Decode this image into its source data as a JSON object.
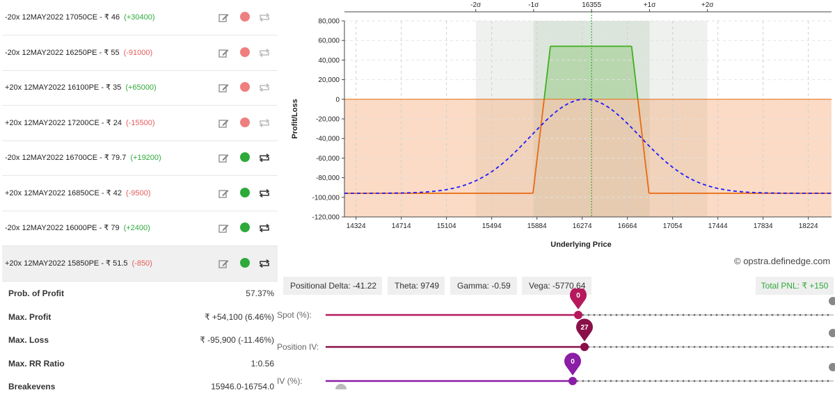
{
  "positions": [
    {
      "text": "-20x  12MAY2022  17050CE - ₹ 46",
      "pnl": "(+30400)",
      "pnl_color": "green",
      "status": "inactive"
    },
    {
      "text": "-20x  12MAY2022  16250PE - ₹ 55",
      "pnl": "(-91000)",
      "pnl_color": "red",
      "status": "inactive"
    },
    {
      "text": "+20x  12MAY2022  16100PE - ₹ 35",
      "pnl": "(+65000)",
      "pnl_color": "green",
      "status": "inactive"
    },
    {
      "text": "+20x  12MAY2022  17200CE - ₹ 24",
      "pnl": "(-15500)",
      "pnl_color": "red",
      "status": "inactive"
    },
    {
      "text": "-20x  12MAY2022  16700CE - ₹ 79.7",
      "pnl": "(+19200)",
      "pnl_color": "green",
      "status": "active"
    },
    {
      "text": "+20x  12MAY2022  16850CE - ₹ 42",
      "pnl": "(-9500)",
      "pnl_color": "red",
      "status": "active"
    },
    {
      "text": "-20x  12MAY2022  16000PE - ₹ 79",
      "pnl": "(+2400)",
      "pnl_color": "green",
      "status": "active"
    },
    {
      "text": "+20x  12MAY2022  15850PE - ₹ 51.5",
      "pnl": "(-850)",
      "pnl_color": "red",
      "status": "active"
    }
  ],
  "stats": [
    {
      "label": "Prob. of Profit",
      "value": "57.37%"
    },
    {
      "label": "Max. Profit",
      "value": "₹ +54,100 (6.46%)"
    },
    {
      "label": "Max. Loss",
      "value": "₹ -95,900 (-11.46%)"
    },
    {
      "label": "Max. RR Ratio",
      "value": "1:0.56"
    },
    {
      "label": "Breakevens",
      "value": "15946.0-16754.0"
    }
  ],
  "greeks": {
    "delta": "Positional Delta: -41.22",
    "theta": "Theta: 9749",
    "gamma": "Gamma: -0.59",
    "vega": "Vega: -5770.64",
    "total_pnl": "Total PNL: ₹ +150"
  },
  "credit": "© opstra.definedge.com",
  "sliders": [
    {
      "label": "Spot (%):",
      "value": "0",
      "color": "#b5195c"
    },
    {
      "label": "Position IV:",
      "value": "27",
      "color": "#8a1049"
    },
    {
      "label": "IV (%):",
      "value": "0",
      "color": "#8a1ea5"
    }
  ],
  "colors": {
    "green": "#2eaa3a",
    "red": "#e45b5b",
    "profit_line": "#3fae1e",
    "loss_line": "#e86a10",
    "curve": "#1a1aff"
  },
  "chart_data": {
    "type": "line",
    "xlabel": "Underlying Price",
    "ylabel": "Profit/Loss",
    "xlim": [
      14224,
      18424
    ],
    "ylim": [
      -120000,
      80000
    ],
    "x_ticks": [
      14324,
      14714,
      15104,
      15494,
      15884,
      16274,
      16664,
      17054,
      17444,
      17834,
      18224
    ],
    "y_ticks": [
      80000,
      60000,
      40000,
      20000,
      0,
      -20000,
      -40000,
      -60000,
      -80000,
      -100000,
      -120000
    ],
    "y_tick_labels": [
      "80,000",
      "60,000",
      "40,000",
      "20,000",
      "0",
      "-20,000",
      "-40,000",
      "-60,000",
      "-80,000",
      "-100,000",
      "-120,000"
    ],
    "top_axis": [
      {
        "label": "-2σ",
        "x": 15356
      },
      {
        "label": "-1σ",
        "x": 15855
      },
      {
        "label": "16355",
        "x": 16355
      },
      {
        "label": "+1σ",
        "x": 16855
      },
      {
        "label": "+2σ",
        "x": 17354
      }
    ],
    "series": [
      {
        "style": "payoff-expiry",
        "x": [
          14224,
          15850,
          15946,
          16000,
          16700,
          16754,
          16850,
          18424
        ],
        "y": [
          -95900,
          -95900,
          0,
          54100,
          54100,
          0,
          -95900,
          -95900
        ]
      },
      {
        "style": "payoff-today-dashed",
        "peak_x": 16300,
        "peak_y": 150,
        "floor_y": -95900
      }
    ]
  }
}
